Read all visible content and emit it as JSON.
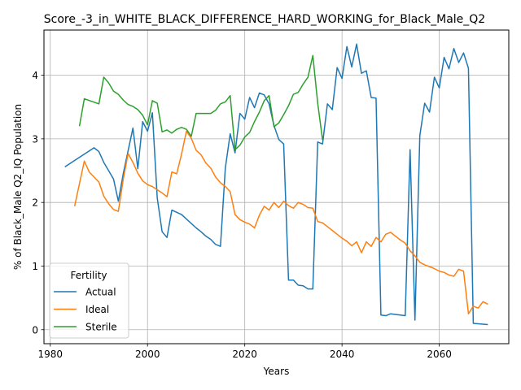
{
  "chart_data": {
    "type": "line",
    "title": "Score_-3_in_WHITE_BLACK_DIFFERENCE_HARD_WORKING_for_Black_Male_Q2",
    "xlabel": "Years",
    "ylabel": "% of Black_Male Q2_IQ Population",
    "xlim": [
      1978.7,
      2074.3
    ],
    "ylim": [
      -0.22,
      4.71
    ],
    "grid": true,
    "xticks": [
      1980,
      2000,
      2020,
      2040,
      2060
    ],
    "yticks": [
      0,
      1,
      2,
      3,
      4
    ],
    "legend": {
      "title": "Fertility",
      "placement": "lower-left"
    },
    "series": [
      {
        "name": "Actual",
        "color": "#1f77b4",
        "points": [
          [
            1983,
            2.56
          ],
          [
            1989,
            2.86
          ],
          [
            1990,
            2.8
          ],
          [
            1991,
            2.63
          ],
          [
            1993,
            2.37
          ],
          [
            1994,
            2.02
          ],
          [
            1995,
            2.45
          ],
          [
            1997,
            3.17
          ],
          [
            1998,
            2.53
          ],
          [
            1999,
            3.27
          ],
          [
            2000,
            3.12
          ],
          [
            2001,
            3.41
          ],
          [
            2002,
            2.07
          ],
          [
            2003,
            1.54
          ],
          [
            2004,
            1.45
          ],
          [
            2005,
            1.88
          ],
          [
            2007,
            1.81
          ],
          [
            2008,
            1.74
          ],
          [
            2010,
            1.6
          ],
          [
            2011,
            1.54
          ],
          [
            2012,
            1.47
          ],
          [
            2013,
            1.42
          ],
          [
            2014,
            1.34
          ],
          [
            2015,
            1.31
          ],
          [
            2016,
            2.54
          ],
          [
            2017,
            3.08
          ],
          [
            2018,
            2.78
          ],
          [
            2019,
            3.4
          ],
          [
            2020,
            3.31
          ],
          [
            2021,
            3.65
          ],
          [
            2022,
            3.49
          ],
          [
            2023,
            3.72
          ],
          [
            2024,
            3.69
          ],
          [
            2025,
            3.55
          ],
          [
            2026,
            3.21
          ],
          [
            2027,
            2.99
          ],
          [
            2028,
            2.92
          ],
          [
            2029,
            0.78
          ],
          [
            2030,
            0.78
          ],
          [
            2031,
            0.7
          ],
          [
            2032,
            0.69
          ],
          [
            2033,
            0.64
          ],
          [
            2034,
            0.64
          ],
          [
            2035,
            2.95
          ],
          [
            2036,
            2.92
          ],
          [
            2037,
            3.55
          ],
          [
            2038,
            3.46
          ],
          [
            2039,
            4.12
          ],
          [
            2040,
            3.95
          ],
          [
            2041,
            4.45
          ],
          [
            2042,
            4.13
          ],
          [
            2043,
            4.49
          ],
          [
            2044,
            4.03
          ],
          [
            2045,
            4.07
          ],
          [
            2046,
            3.65
          ],
          [
            2047,
            3.64
          ],
          [
            2048,
            0.23
          ],
          [
            2049,
            0.22
          ],
          [
            2050,
            0.25
          ],
          [
            2051,
            0.24
          ],
          [
            2052,
            0.23
          ],
          [
            2053,
            0.22
          ],
          [
            2054,
            2.83
          ],
          [
            2055,
            0.15
          ],
          [
            2056,
            3.05
          ],
          [
            2057,
            3.56
          ],
          [
            2058,
            3.42
          ],
          [
            2059,
            3.97
          ],
          [
            2060,
            3.8
          ],
          [
            2061,
            4.28
          ],
          [
            2062,
            4.1
          ],
          [
            2063,
            4.42
          ],
          [
            2064,
            4.2
          ],
          [
            2065,
            4.35
          ],
          [
            2066,
            4.11
          ],
          [
            2067,
            0.1
          ],
          [
            2070,
            0.08
          ]
        ]
      },
      {
        "name": "Ideal",
        "color": "#ff7f0e",
        "points": [
          [
            1985,
            1.94
          ],
          [
            1987,
            2.65
          ],
          [
            1988,
            2.48
          ],
          [
            1990,
            2.32
          ],
          [
            1991,
            2.1
          ],
          [
            1992,
            1.98
          ],
          [
            1993,
            1.89
          ],
          [
            1994,
            1.86
          ],
          [
            1995,
            2.36
          ],
          [
            1996,
            2.77
          ],
          [
            1997,
            2.63
          ],
          [
            1998,
            2.46
          ],
          [
            1999,
            2.34
          ],
          [
            2000,
            2.28
          ],
          [
            2001,
            2.25
          ],
          [
            2002,
            2.2
          ],
          [
            2003,
            2.15
          ],
          [
            2004,
            2.09
          ],
          [
            2005,
            2.48
          ],
          [
            2006,
            2.45
          ],
          [
            2007,
            2.76
          ],
          [
            2008,
            3.12
          ],
          [
            2009,
            3.01
          ],
          [
            2010,
            2.82
          ],
          [
            2011,
            2.75
          ],
          [
            2012,
            2.62
          ],
          [
            2013,
            2.54
          ],
          [
            2014,
            2.4
          ],
          [
            2015,
            2.31
          ],
          [
            2016,
            2.25
          ],
          [
            2017,
            2.17
          ],
          [
            2018,
            1.81
          ],
          [
            2019,
            1.73
          ],
          [
            2020,
            1.69
          ],
          [
            2021,
            1.66
          ],
          [
            2022,
            1.6
          ],
          [
            2023,
            1.8
          ],
          [
            2024,
            1.94
          ],
          [
            2025,
            1.88
          ],
          [
            2026,
            2.0
          ],
          [
            2027,
            1.92
          ],
          [
            2028,
            2.02
          ],
          [
            2029,
            1.95
          ],
          [
            2030,
            1.91
          ],
          [
            2031,
            2.0
          ],
          [
            2032,
            1.97
          ],
          [
            2033,
            1.92
          ],
          [
            2034,
            1.91
          ],
          [
            2035,
            1.7
          ],
          [
            2036,
            1.68
          ],
          [
            2037,
            1.62
          ],
          [
            2038,
            1.56
          ],
          [
            2039,
            1.5
          ],
          [
            2040,
            1.44
          ],
          [
            2041,
            1.39
          ],
          [
            2042,
            1.32
          ],
          [
            2043,
            1.38
          ],
          [
            2044,
            1.21
          ],
          [
            2045,
            1.38
          ],
          [
            2046,
            1.31
          ],
          [
            2047,
            1.45
          ],
          [
            2048,
            1.38
          ],
          [
            2049,
            1.5
          ],
          [
            2050,
            1.53
          ],
          [
            2051,
            1.47
          ],
          [
            2052,
            1.41
          ],
          [
            2053,
            1.36
          ],
          [
            2054,
            1.24
          ],
          [
            2055,
            1.16
          ],
          [
            2056,
            1.06
          ],
          [
            2057,
            1.02
          ],
          [
            2058,
            0.99
          ],
          [
            2059,
            0.96
          ],
          [
            2060,
            0.92
          ],
          [
            2061,
            0.9
          ],
          [
            2062,
            0.86
          ],
          [
            2063,
            0.84
          ],
          [
            2064,
            0.95
          ],
          [
            2065,
            0.92
          ],
          [
            2066,
            0.25
          ],
          [
            2067,
            0.37
          ],
          [
            2068,
            0.34
          ],
          [
            2069,
            0.44
          ],
          [
            2070,
            0.4
          ]
        ]
      },
      {
        "name": "Sterile",
        "color": "#2ca02c",
        "points": [
          [
            1986,
            3.2
          ],
          [
            1987,
            3.63
          ],
          [
            1990,
            3.55
          ],
          [
            1991,
            3.97
          ],
          [
            1992,
            3.88
          ],
          [
            1993,
            3.75
          ],
          [
            1994,
            3.7
          ],
          [
            1995,
            3.61
          ],
          [
            1996,
            3.54
          ],
          [
            1997,
            3.51
          ],
          [
            1998,
            3.46
          ],
          [
            1999,
            3.37
          ],
          [
            2000,
            3.22
          ],
          [
            2001,
            3.6
          ],
          [
            2002,
            3.56
          ],
          [
            2003,
            3.11
          ],
          [
            2004,
            3.14
          ],
          [
            2005,
            3.09
          ],
          [
            2006,
            3.15
          ],
          [
            2007,
            3.18
          ],
          [
            2008,
            3.15
          ],
          [
            2009,
            3.04
          ],
          [
            2010,
            3.4
          ],
          [
            2013,
            3.4
          ],
          [
            2014,
            3.45
          ],
          [
            2015,
            3.55
          ],
          [
            2016,
            3.58
          ],
          [
            2017,
            3.68
          ],
          [
            2018,
            2.83
          ],
          [
            2019,
            2.9
          ],
          [
            2020,
            3.03
          ],
          [
            2021,
            3.1
          ],
          [
            2022,
            3.27
          ],
          [
            2023,
            3.42
          ],
          [
            2024,
            3.6
          ],
          [
            2025,
            3.68
          ],
          [
            2026,
            3.19
          ],
          [
            2027,
            3.25
          ],
          [
            2028,
            3.38
          ],
          [
            2029,
            3.52
          ],
          [
            2030,
            3.7
          ],
          [
            2031,
            3.73
          ],
          [
            2032,
            3.86
          ],
          [
            2033,
            3.97
          ],
          [
            2034,
            4.31
          ],
          [
            2035,
            3.56
          ],
          [
            2036,
            2.98
          ]
        ]
      }
    ]
  }
}
